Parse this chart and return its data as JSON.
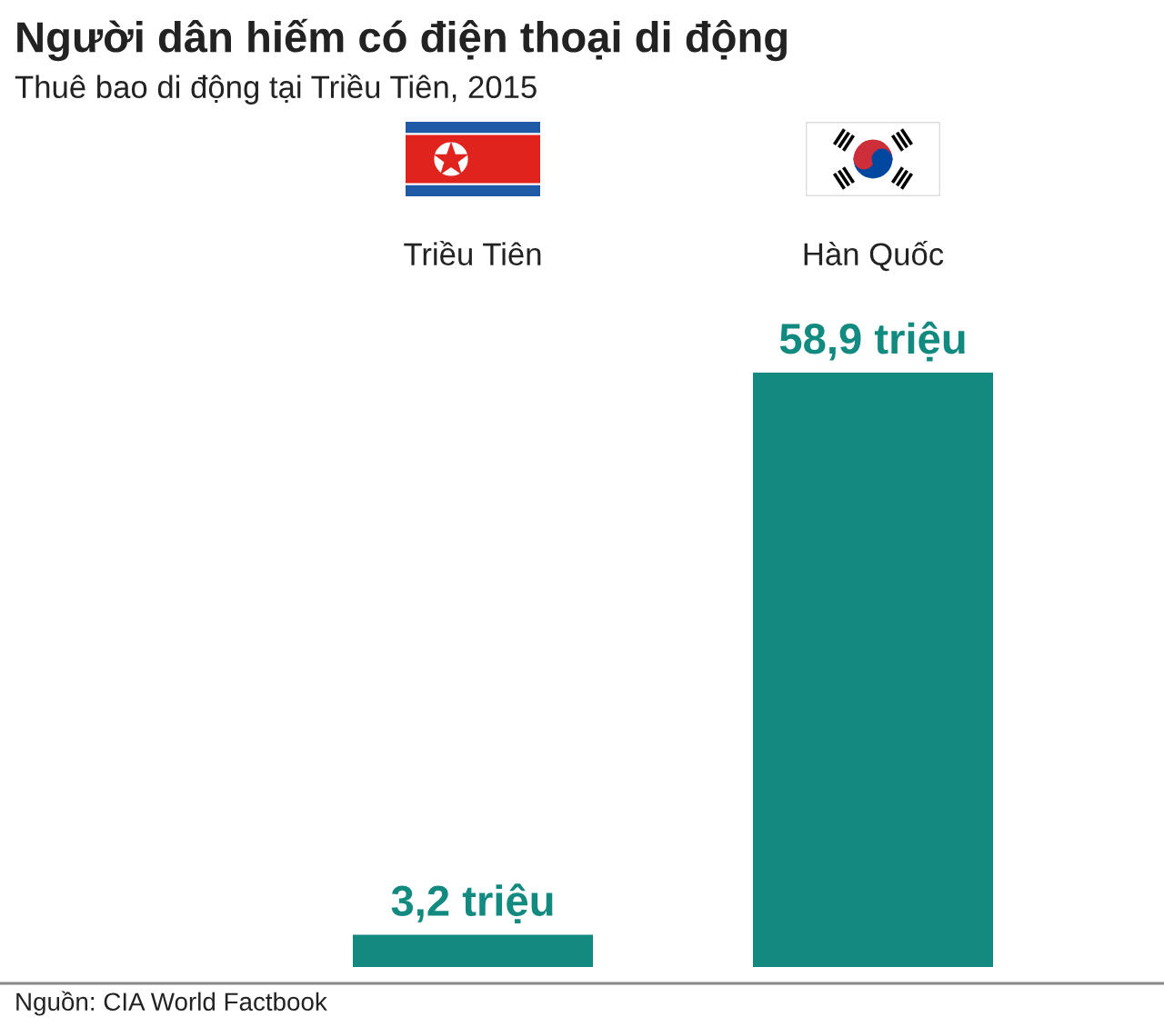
{
  "chart_data": {
    "type": "bar",
    "title": "Người dân hiếm có điện thoại di động",
    "subtitle": "Thuê bao di động tại Triều Tiên, 2015",
    "categories": [
      "Triều Tiên",
      "Hàn Quốc"
    ],
    "values": [
      3.2,
      58.9
    ],
    "value_labels": [
      "3,2 triệu",
      "58,9 triệu"
    ],
    "color": "#138a80",
    "tick_labels": "x",
    "grid": false,
    "annotations": [
      "Nguồn: CIA World Factbook"
    ]
  }
}
